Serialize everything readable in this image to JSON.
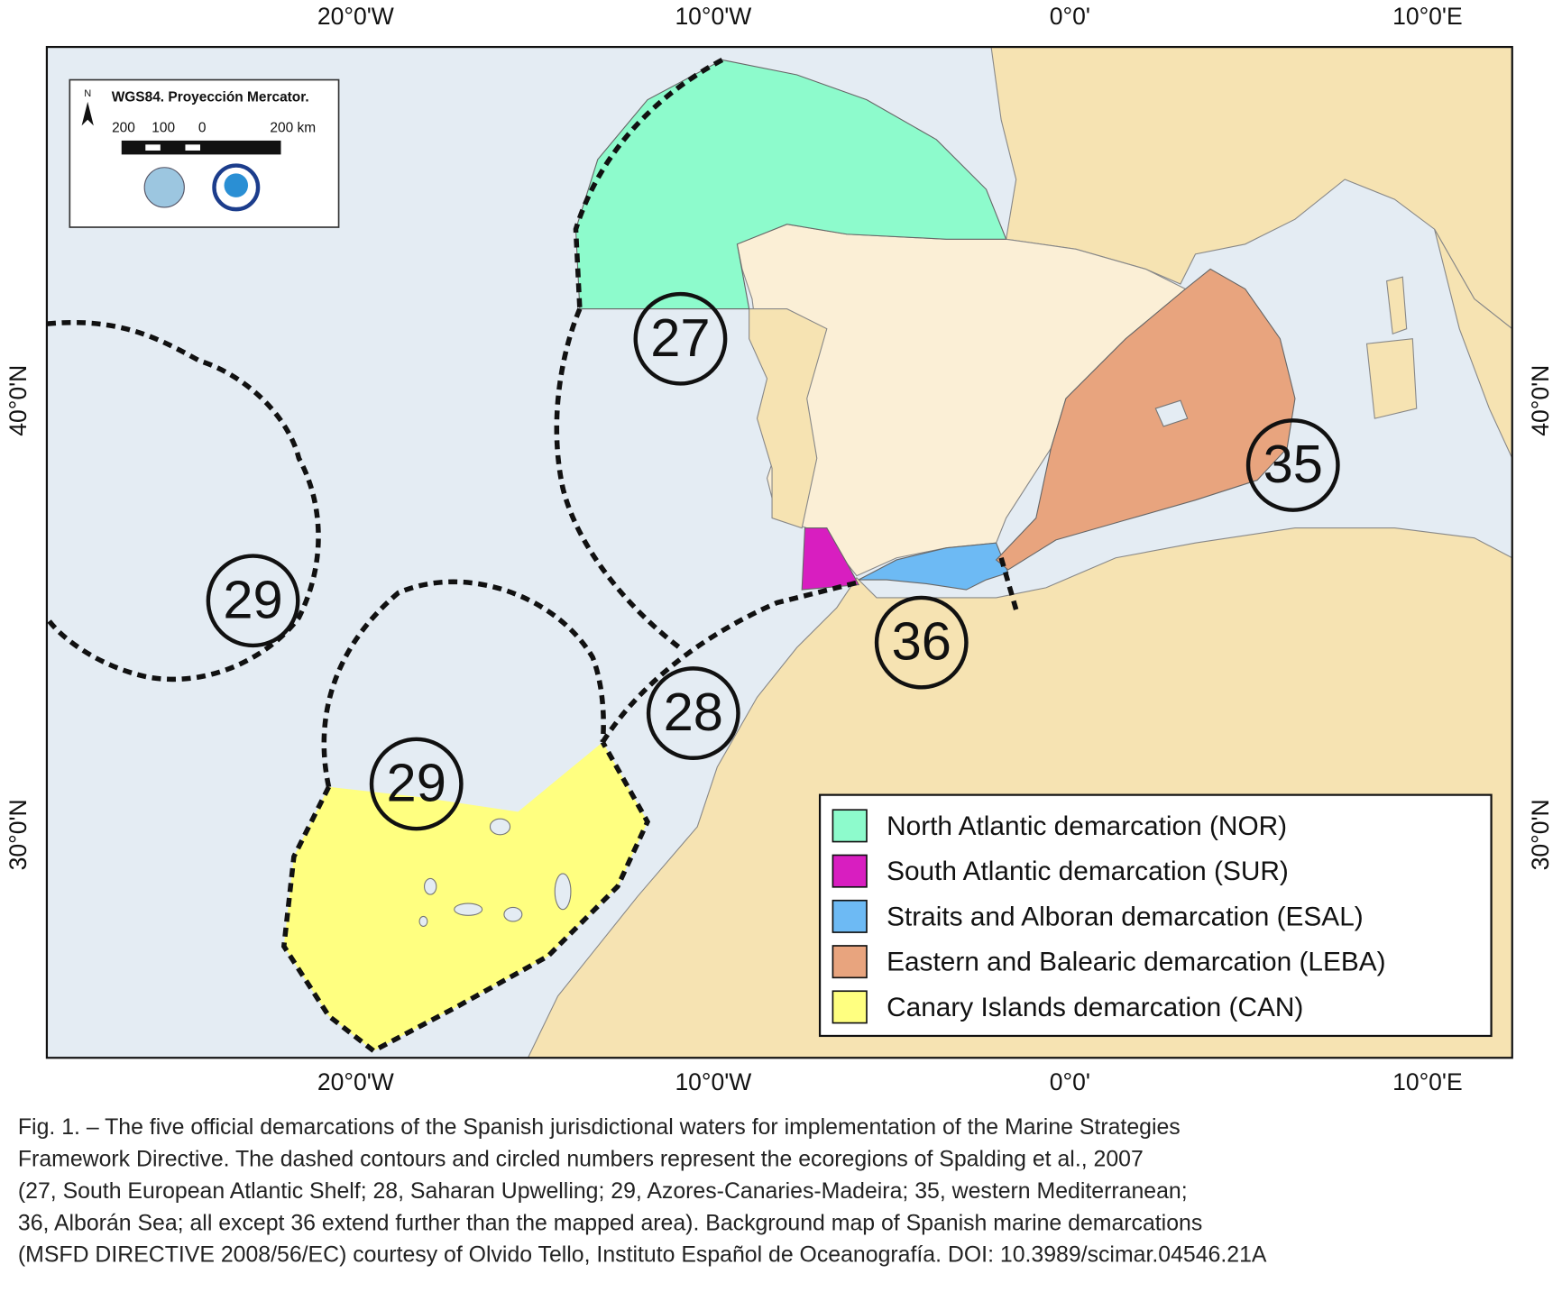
{
  "map": {
    "lon_labels": [
      "20°0'W",
      "10°0'W",
      "0°0'",
      "10°0'E"
    ],
    "lat_labels": [
      "40°0'N",
      "30°0'N"
    ],
    "inset": {
      "title": "WGS84. Proyección Mercator.",
      "north": "N",
      "scale_labels": [
        "200",
        "100",
        "0",
        "200 km"
      ]
    },
    "ecoregion_labels": [
      "27",
      "28",
      "29",
      "29",
      "35",
      "36"
    ],
    "legend": [
      {
        "name": "North Atlantic demarcation (NOR)",
        "color": "#8dfbcc"
      },
      {
        "name": "South Atlantic demarcation (SUR)",
        "color": "#d81ec0"
      },
      {
        "name": "Straits and Alboran demarcation (ESAL)",
        "color": "#6dbaf4"
      },
      {
        "name": "Eastern and Balearic demarcation (LEBA)",
        "color": "#e8a47e"
      },
      {
        "name": "Canary Islands demarcation (CAN)",
        "color": "#ffff80"
      }
    ],
    "caption_lines": [
      "Fig. 1. – The five official demarcations of the Spanish jurisdictional waters for implementation of the Marine Strategies",
      "Framework Directive. The dashed contours and circled numbers represent the ecoregions of Spalding et al., 2007",
      "(27, South European Atlantic Shelf; 28, Saharan Upwelling; 29, Azores-Canaries-Madeira; 35, western Mediterranean;",
      "36, Alborán Sea; all except 36 extend further than the mapped area). Background map of Spanish marine demarcations",
      "(MSFD DIRECTIVE 2008/56/EC) courtesy of Olvido Tello, Instituto Español de Oceanografía. DOI: 10.3989/scimar.04546.21A"
    ]
  }
}
